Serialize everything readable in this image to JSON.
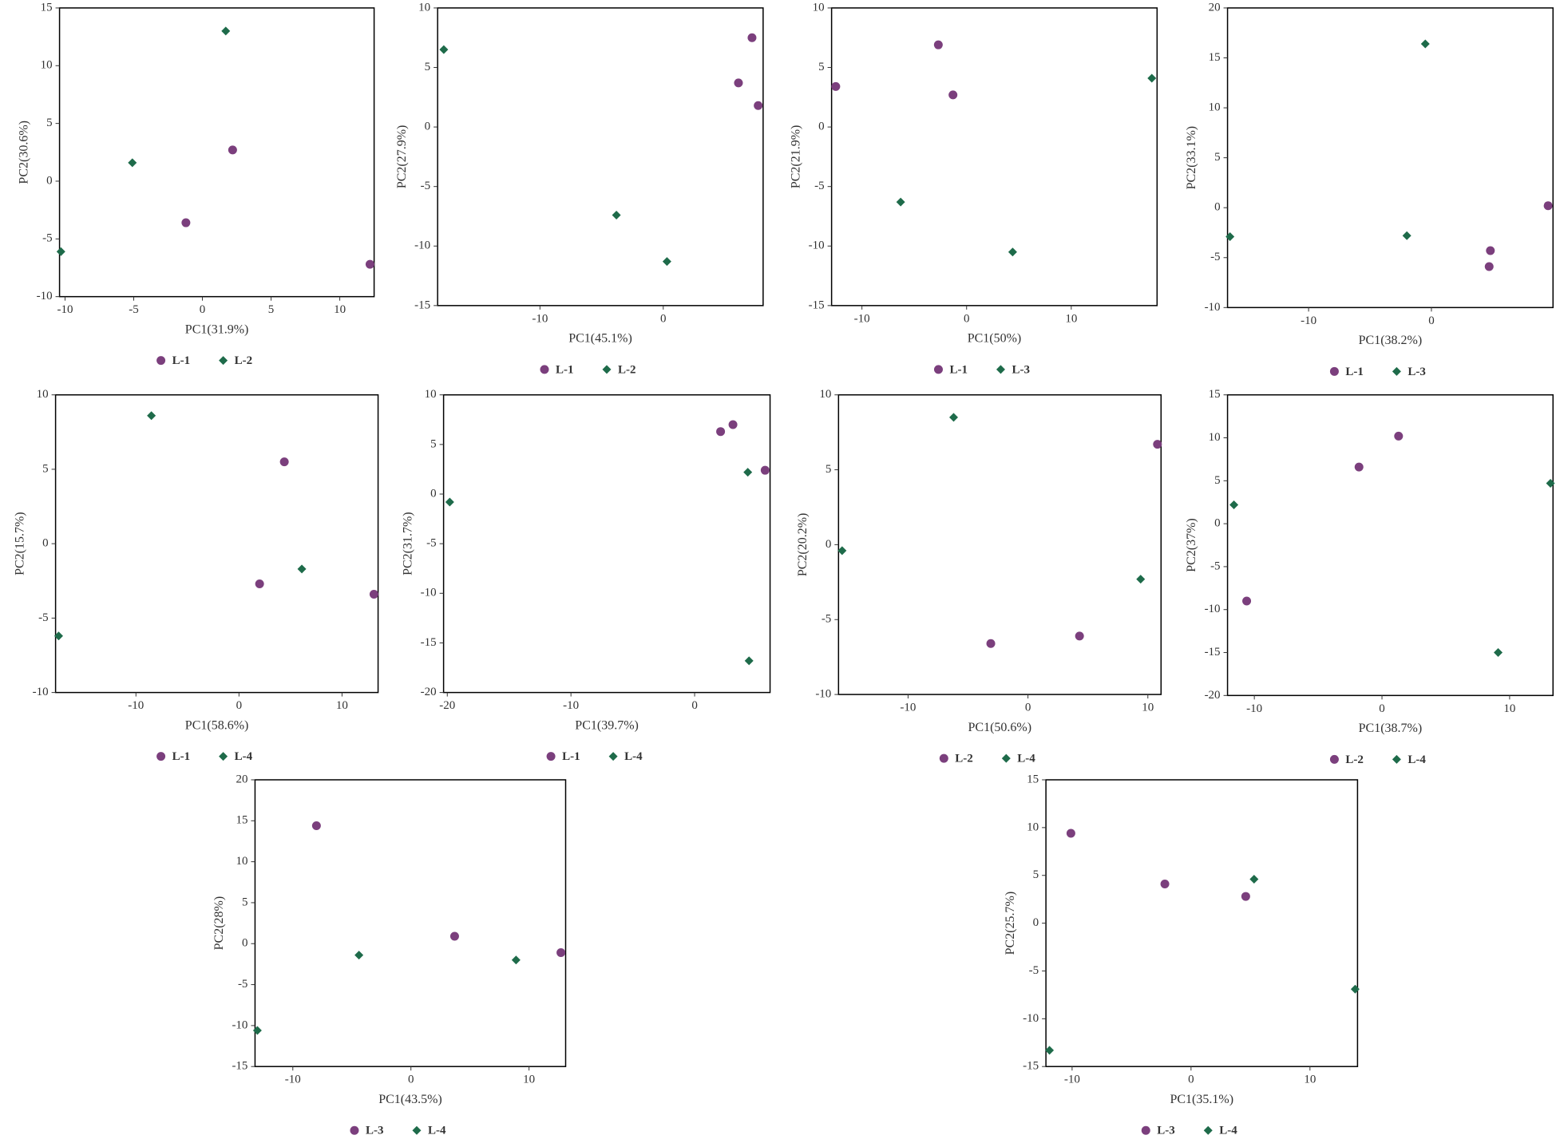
{
  "chart_data": [
    {
      "type": "scatter",
      "xlabel": "PC1(31.9%)",
      "ylabel": "PC2(30.6%)",
      "xlim": [
        -10.4,
        12.5
      ],
      "ylim": [
        -10,
        15
      ],
      "xticks": [
        -10,
        -5,
        0,
        5,
        10
      ],
      "yticks": [
        -10,
        -5,
        0,
        5,
        10,
        15
      ],
      "series": [
        {
          "name": "L-1",
          "color": "#7b3f7d",
          "marker": "circle",
          "x": [
            -1.2,
            2.2,
            12.2
          ],
          "y": [
            -3.6,
            2.7,
            -7.2
          ]
        },
        {
          "name": "L-2",
          "color": "#1e6b4a",
          "marker": "diamond",
          "x": [
            1.7,
            -5.1,
            -10.3
          ],
          "y": [
            13.0,
            1.6,
            -6.1
          ]
        }
      ]
    },
    {
      "type": "scatter",
      "xlabel": "PC1(45.1%)",
      "ylabel": "PC2(27.9%)",
      "xlim": [
        -18.3,
        8.1
      ],
      "ylim": [
        -15,
        10
      ],
      "xticks": [
        -10,
        0
      ],
      "yticks": [
        -15,
        -10,
        -5,
        0,
        5,
        10
      ],
      "series": [
        {
          "name": "L-1",
          "color": "#7b3f7d",
          "marker": "circle",
          "x": [
            7.2,
            6.1,
            7.7
          ],
          "y": [
            7.5,
            3.7,
            1.8
          ]
        },
        {
          "name": "L-2",
          "color": "#1e6b4a",
          "marker": "diamond",
          "x": [
            -17.8,
            -3.8,
            0.3
          ],
          "y": [
            6.5,
            -7.4,
            -11.3
          ]
        }
      ]
    },
    {
      "type": "scatter",
      "xlabel": "PC1(50%)",
      "ylabel": "PC2(21.9%)",
      "xlim": [
        -12.9,
        18.2
      ],
      "ylim": [
        -15,
        10
      ],
      "xticks": [
        -10,
        0,
        10
      ],
      "yticks": [
        -15,
        -10,
        -5,
        0,
        5,
        10
      ],
      "series": [
        {
          "name": "L-1",
          "color": "#7b3f7d",
          "marker": "circle",
          "x": [
            -12.5,
            -2.7,
            -1.3
          ],
          "y": [
            3.4,
            6.9,
            2.7
          ]
        },
        {
          "name": "L-3",
          "color": "#1e6b4a",
          "marker": "diamond",
          "x": [
            17.7,
            -6.3,
            4.4
          ],
          "y": [
            4.1,
            -6.3,
            -10.5
          ]
        }
      ]
    },
    {
      "type": "scatter",
      "xlabel": "PC1(38.2%)",
      "ylabel": "PC2(33.1%)",
      "xlim": [
        -16.6,
        9.9
      ],
      "ylim": [
        -10,
        20
      ],
      "xticks": [
        -10,
        0
      ],
      "yticks": [
        -10,
        -5,
        0,
        5,
        10,
        15,
        20
      ],
      "series": [
        {
          "name": "L-1",
          "color": "#7b3f7d",
          "marker": "circle",
          "x": [
            9.5,
            4.8,
            4.7
          ],
          "y": [
            0.2,
            -4.3,
            -5.9
          ]
        },
        {
          "name": "L-3",
          "color": "#1e6b4a",
          "marker": "diamond",
          "x": [
            -16.4,
            -2.0,
            -0.5
          ],
          "y": [
            -2.9,
            -2.8,
            16.4
          ]
        }
      ]
    },
    {
      "type": "scatter",
      "xlabel": "PC1(58.6%)",
      "ylabel": "PC2(15.7%)",
      "xlim": [
        -17.8,
        13.5
      ],
      "ylim": [
        -10,
        10
      ],
      "xticks": [
        -10,
        0,
        10
      ],
      "yticks": [
        -10,
        -5,
        0,
        5,
        10
      ],
      "series": [
        {
          "name": "L-1",
          "color": "#7b3f7d",
          "marker": "circle",
          "x": [
            4.4,
            2.0,
            13.1
          ],
          "y": [
            5.5,
            -2.7,
            -3.4
          ]
        },
        {
          "name": "L-4",
          "color": "#1e6b4a",
          "marker": "diamond",
          "x": [
            -8.5,
            6.1,
            -17.5
          ],
          "y": [
            8.6,
            -1.7,
            -6.2
          ]
        }
      ]
    },
    {
      "type": "scatter",
      "xlabel": "PC1(39.7%)",
      "ylabel": "PC2(31.7%)",
      "xlim": [
        -20.3,
        6.1
      ],
      "ylim": [
        -20,
        10
      ],
      "xticks": [
        -20,
        -10,
        0
      ],
      "yticks": [
        -20,
        -15,
        -10,
        -5,
        0,
        5,
        10
      ],
      "series": [
        {
          "name": "L-1",
          "color": "#7b3f7d",
          "marker": "circle",
          "x": [
            2.1,
            3.1,
            5.7
          ],
          "y": [
            6.3,
            7.0,
            2.4
          ]
        },
        {
          "name": "L-4",
          "color": "#1e6b4a",
          "marker": "diamond",
          "x": [
            -19.8,
            4.3,
            4.4
          ],
          "y": [
            -0.8,
            2.2,
            -16.8
          ]
        }
      ]
    },
    {
      "type": "scatter",
      "xlabel": "PC1(50.6%)",
      "ylabel": "PC2(20.2%)",
      "xlim": [
        -15.8,
        11.1
      ],
      "ylim": [
        -10,
        10
      ],
      "xticks": [
        -10,
        0,
        10
      ],
      "yticks": [
        -10,
        -5,
        0,
        5,
        10
      ],
      "series": [
        {
          "name": "L-2",
          "color": "#7b3f7d",
          "marker": "circle",
          "x": [
            10.8,
            -3.1,
            4.3
          ],
          "y": [
            6.7,
            -6.6,
            -6.1
          ]
        },
        {
          "name": "L-4",
          "color": "#1e6b4a",
          "marker": "diamond",
          "x": [
            -15.5,
            -6.2,
            9.4
          ],
          "y": [
            -0.4,
            8.5,
            -2.3
          ]
        }
      ]
    },
    {
      "type": "scatter",
      "xlabel": "PC1(38.7%)",
      "ylabel": "PC2(37%)",
      "xlim": [
        -12.1,
        13.4
      ],
      "ylim": [
        -20,
        15
      ],
      "xticks": [
        -10,
        0,
        10
      ],
      "yticks": [
        -20,
        -15,
        -10,
        -5,
        0,
        5,
        10,
        15
      ],
      "series": [
        {
          "name": "L-2",
          "color": "#7b3f7d",
          "marker": "circle",
          "x": [
            -1.8,
            1.3,
            -10.6
          ],
          "y": [
            6.6,
            10.2,
            -9.0
          ]
        },
        {
          "name": "L-4",
          "color": "#1e6b4a",
          "marker": "diamond",
          "x": [
            -11.6,
            13.2,
            9.1
          ],
          "y": [
            2.2,
            4.7,
            -15.0
          ]
        }
      ]
    },
    {
      "type": "scatter",
      "xlabel": "PC1(43.5%)",
      "ylabel": "PC2(28%)",
      "xlim": [
        -13.2,
        13.1
      ],
      "ylim": [
        -15,
        20
      ],
      "xticks": [
        -10,
        0,
        10
      ],
      "yticks": [
        -15,
        -10,
        -5,
        0,
        5,
        10,
        15,
        20
      ],
      "series": [
        {
          "name": "L-3",
          "color": "#7b3f7d",
          "marker": "circle",
          "x": [
            -8.0,
            3.7,
            12.7
          ],
          "y": [
            14.4,
            0.9,
            -1.1
          ]
        },
        {
          "name": "L-4",
          "color": "#1e6b4a",
          "marker": "diamond",
          "x": [
            -13.0,
            -4.4,
            8.9
          ],
          "y": [
            -10.6,
            -1.4,
            -2.0
          ]
        }
      ]
    },
    {
      "type": "scatter",
      "xlabel": "PC1(35.1%)",
      "ylabel": "PC2(25.7%)",
      "xlim": [
        -12.2,
        14.0
      ],
      "ylim": [
        -15,
        15
      ],
      "xticks": [
        -10,
        0,
        10
      ],
      "yticks": [
        -15,
        -10,
        -5,
        0,
        5,
        10,
        15
      ],
      "series": [
        {
          "name": "L-3",
          "color": "#7b3f7d",
          "marker": "circle",
          "x": [
            -10.1,
            -2.2,
            4.6
          ],
          "y": [
            9.4,
            4.1,
            2.8
          ]
        },
        {
          "name": "L-4",
          "color": "#1e6b4a",
          "marker": "diamond",
          "x": [
            -11.9,
            5.3,
            13.8
          ],
          "y": [
            -13.3,
            4.6,
            -6.9
          ]
        }
      ]
    }
  ]
}
